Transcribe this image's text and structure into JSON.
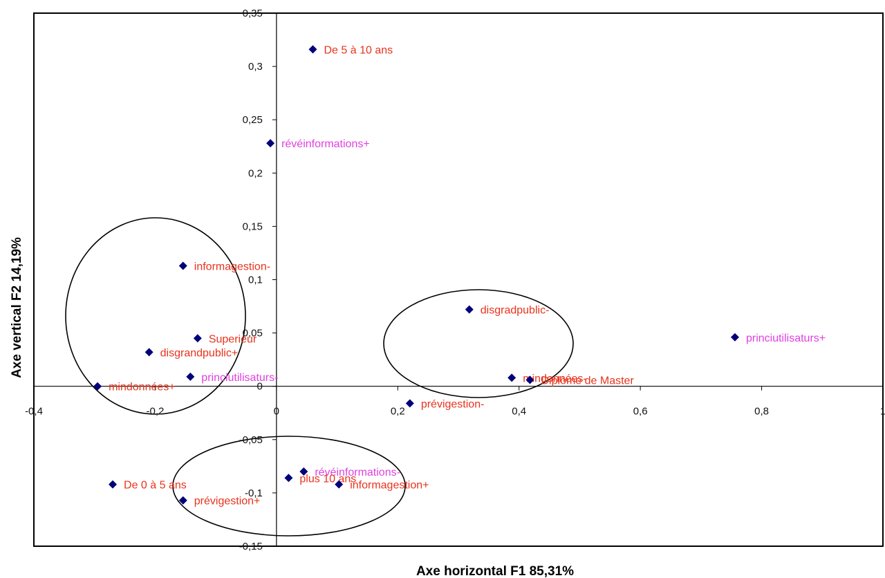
{
  "chart_data": {
    "type": "scatter",
    "title": "",
    "xlabel": "Axe horizontal F1  85,31%",
    "ylabel": "Axe vertical F2  14,19%",
    "xlim": [
      -0.4,
      1
    ],
    "ylim": [
      -0.15,
      0.35
    ],
    "x_ticks": [
      {
        "v": -0.4,
        "label": "-0,4"
      },
      {
        "v": -0.2,
        "label": "-0,2"
      },
      {
        "v": 0,
        "label": "0"
      },
      {
        "v": 0.2,
        "label": "0,2"
      },
      {
        "v": 0.4,
        "label": "0,4"
      },
      {
        "v": 0.6,
        "label": "0,6"
      },
      {
        "v": 0.8,
        "label": "0,8"
      },
      {
        "v": 1,
        "label": "1"
      }
    ],
    "y_ticks": [
      {
        "v": 0.35,
        "label": "0,35"
      },
      {
        "v": 0.3,
        "label": "0,3"
      },
      {
        "v": 0.25,
        "label": "0,25"
      },
      {
        "v": 0.2,
        "label": "0,2"
      },
      {
        "v": 0.15,
        "label": "0,15"
      },
      {
        "v": 0.1,
        "label": "0,1"
      },
      {
        "v": 0.05,
        "label": "0,05"
      },
      {
        "v": 0,
        "label": "0"
      },
      {
        "v": -0.05,
        "label": "-0,05"
      },
      {
        "v": -0.1,
        "label": "-0,1"
      },
      {
        "v": -0.15,
        "label": "-0,15"
      }
    ],
    "grid": false,
    "legend": "none",
    "marker_color": "#00007a",
    "points": [
      {
        "x": 0.06,
        "y": 0.316,
        "label": "De 5 à 10 ans",
        "color": "#e8331c"
      },
      {
        "x": -0.01,
        "y": 0.228,
        "label": "révéinformations+",
        "color": "#e040e0"
      },
      {
        "x": -0.154,
        "y": 0.113,
        "label": "informagestion-",
        "color": "#e8331c"
      },
      {
        "x": 0.318,
        "y": 0.072,
        "label": "disgradpublic-",
        "color": "#e8331c"
      },
      {
        "x": 0.756,
        "y": 0.046,
        "label": "princiutilisaturs+",
        "color": "#e040e0"
      },
      {
        "x": -0.13,
        "y": 0.045,
        "label": "Superieur",
        "color": "#e8331c"
      },
      {
        "x": -0.21,
        "y": 0.032,
        "label": "disgrandpublic+",
        "color": "#e8331c"
      },
      {
        "x": 0.388,
        "y": 0.008,
        "label": "mindonnées-",
        "color": "#e8331c"
      },
      {
        "x": 0.418,
        "y": 0.006,
        "label": "Diplôme de Master",
        "color": "#e8331c"
      },
      {
        "x": -0.142,
        "y": 0.009,
        "label": "princiutilisaturs-",
        "color": "#e040e0"
      },
      {
        "x": -0.295,
        "y": 0.0,
        "label": "mindonnées+",
        "color": "#e8331c"
      },
      {
        "x": 0.22,
        "y": -0.016,
        "label": "prévigestion-",
        "color": "#e8331c"
      },
      {
        "x": 0.045,
        "y": -0.08,
        "label": "révéinformations-",
        "color": "#e040e0"
      },
      {
        "x": 0.02,
        "y": -0.086,
        "label": "plus 10 ans",
        "color": "#e8331c"
      },
      {
        "x": 0.103,
        "y": -0.092,
        "label": "informagestion+",
        "color": "#e8331c"
      },
      {
        "x": -0.27,
        "y": -0.092,
        "label": "De 0 à 5 ans",
        "color": "#e8331c"
      },
      {
        "x": -0.154,
        "y": -0.107,
        "label": "prévigestion+",
        "color": "#e8331c"
      }
    ]
  }
}
